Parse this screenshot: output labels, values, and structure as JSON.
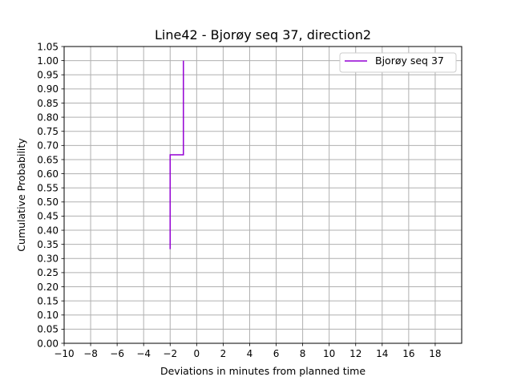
{
  "chart_data": {
    "type": "line",
    "drawstyle": "steps-post",
    "title": "Line42 - Bjorøy seq 37, direction2",
    "xlabel": "Deviations in minutes from planned time",
    "ylabel": "Cumulative Probability",
    "xlim": [
      -10,
      20
    ],
    "ylim": [
      0,
      1.05
    ],
    "xticks": [
      -10,
      -8,
      -6,
      -4,
      -2,
      0,
      2,
      4,
      6,
      8,
      10,
      12,
      14,
      16,
      18
    ],
    "xtick_labels": [
      "−10",
      "−8",
      "−6",
      "−4",
      "−2",
      "0",
      "2",
      "4",
      "6",
      "8",
      "10",
      "12",
      "14",
      "16",
      "18"
    ],
    "yticks": [
      0,
      0.05,
      0.1,
      0.15,
      0.2,
      0.25,
      0.3,
      0.35,
      0.4,
      0.45,
      0.5,
      0.55,
      0.6,
      0.65,
      0.7,
      0.75,
      0.8,
      0.85,
      0.9,
      0.95,
      1.0,
      1.05
    ],
    "ytick_labels": [
      "0.00",
      "0.05",
      "0.10",
      "0.15",
      "0.20",
      "0.25",
      "0.30",
      "0.35",
      "0.40",
      "0.45",
      "0.50",
      "0.55",
      "0.60",
      "0.65",
      "0.70",
      "0.75",
      "0.80",
      "0.85",
      "0.90",
      "0.95",
      "1.00",
      "1.05"
    ],
    "grid": true,
    "legend_position": "top-right",
    "series": [
      {
        "name": "Bjorøy seq 37",
        "color": "#9400d3",
        "x": [
          -2,
          -2,
          -1,
          -1
        ],
        "y": [
          0.333,
          0.667,
          0.667,
          1.0
        ]
      }
    ]
  }
}
